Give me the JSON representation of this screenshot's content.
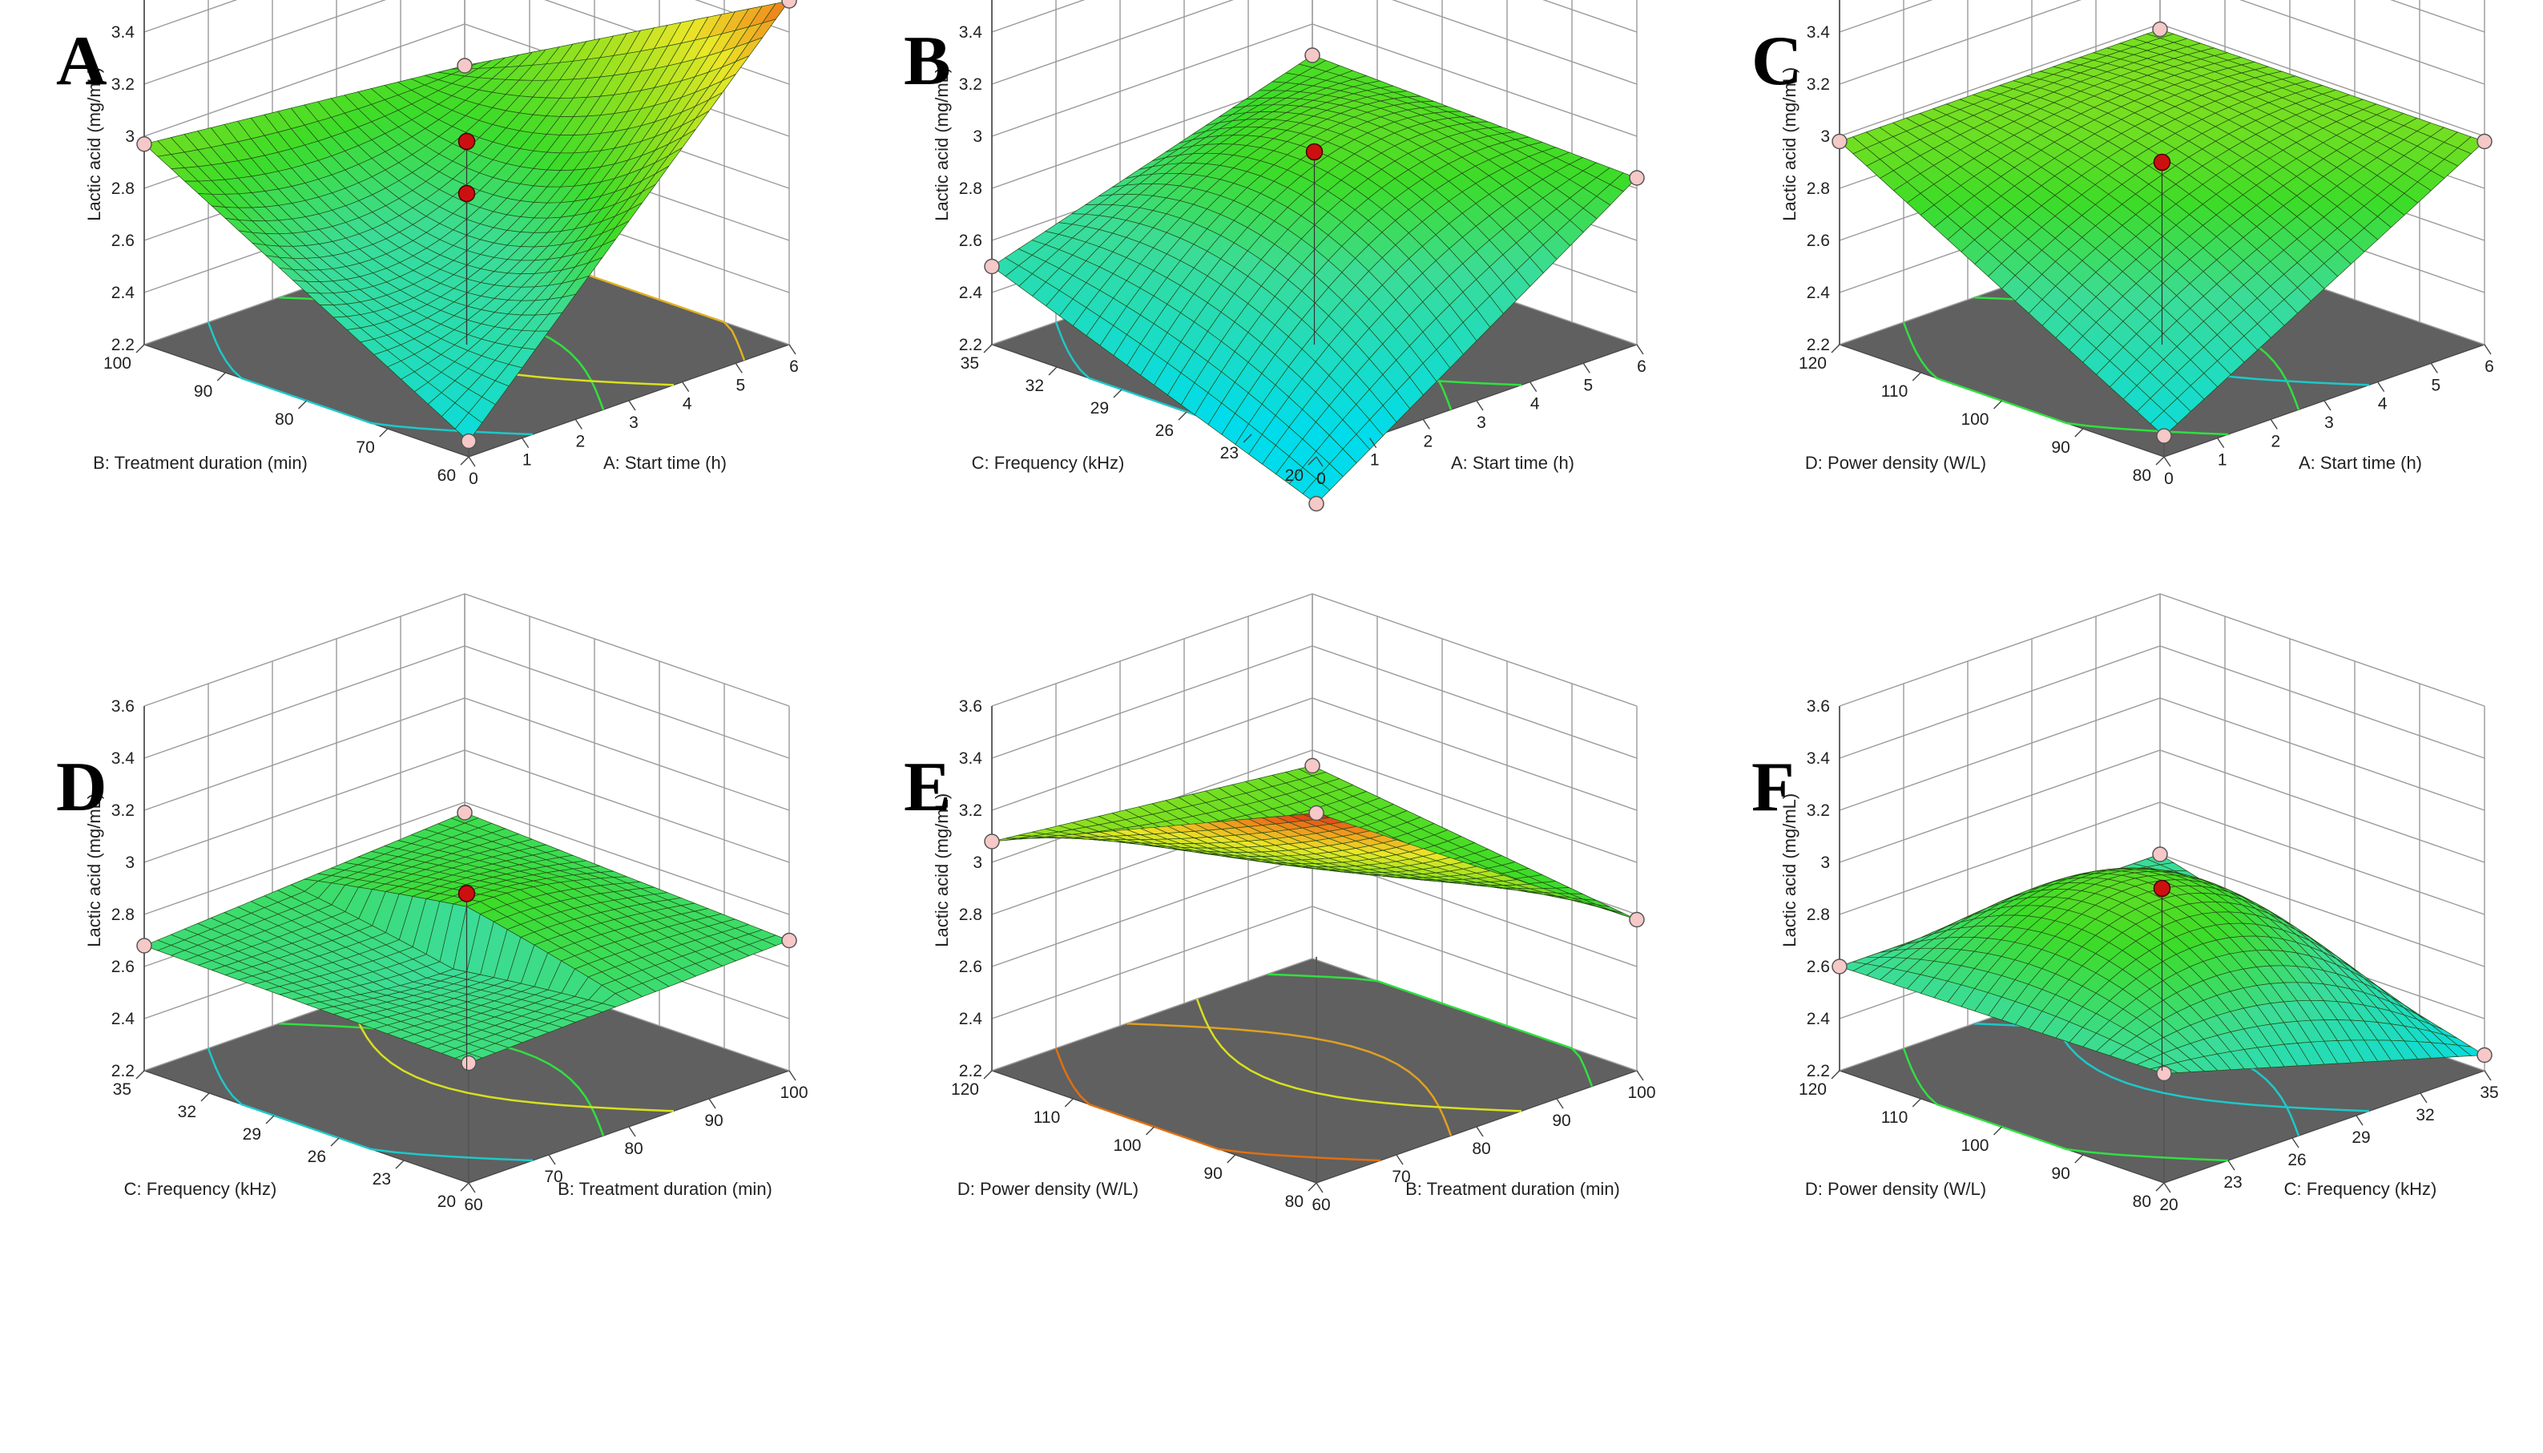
{
  "figure": {
    "z_axis_label": "Lactic acid (mg/mL)",
    "z_ticks": [
      "2.2",
      "2.4",
      "2.6",
      "2.8",
      "3",
      "3.2",
      "3.4",
      "3.6"
    ],
    "zlim": [
      2.2,
      3.6
    ]
  },
  "chart_data": [
    {
      "type": "surface3d",
      "letter": "A",
      "x_label": "A: Start time (h)",
      "x_ticks": [
        "0",
        "1",
        "2",
        "3",
        "4",
        "5",
        "6"
      ],
      "xlim": [
        0,
        6
      ],
      "y_label": "B: Treatment duration (min)",
      "y_ticks": [
        "60",
        "70",
        "80",
        "90",
        "100"
      ],
      "ylim": [
        60,
        100
      ],
      "z_label": "Lactic acid (mg/mL)",
      "zlim": [
        2.2,
        3.6
      ],
      "corners": {
        "x0y0": 2.26,
        "x1y0": 3.52,
        "x0y1": 2.97,
        "x1y1": 2.84
      },
      "center": 2.62,
      "curvature_x": 0.15,
      "curvature_y": -0.05,
      "design_points": [
        {
          "x": 3,
          "y": 80,
          "z": 2.98
        },
        {
          "x": 3,
          "y": 80,
          "z": 2.78
        }
      ],
      "contour_colors": [
        "#1ec8c8",
        "#30e040",
        "#d8e020",
        "#e0b020"
      ]
    },
    {
      "type": "surface3d",
      "letter": "B",
      "x_label": "A: Start time (h)",
      "x_ticks": [
        "0",
        "1",
        "2",
        "3",
        "4",
        "5",
        "6"
      ],
      "xlim": [
        0,
        6
      ],
      "y_label": "C: Frequency (kHz)",
      "y_ticks": [
        "20",
        "23",
        "26",
        "29",
        "32",
        "35"
      ],
      "ylim": [
        20,
        35
      ],
      "z_label": "Lactic acid (mg/mL)",
      "zlim": [
        2.2,
        3.6
      ],
      "corners": {
        "x0y0": 2.02,
        "x1y0": 2.84,
        "x0y1": 2.5,
        "x1y1": 2.88
      },
      "center": 2.82,
      "curvature_x": 0.0,
      "curvature_y": 0.0,
      "design_points": [
        {
          "x": 3,
          "y": 27.5,
          "z": 2.94
        }
      ],
      "contour_colors": [
        "#1ec8c8",
        "#30e040",
        "#30e040"
      ]
    },
    {
      "type": "surface3d",
      "letter": "C",
      "x_label": "A: Start time (h)",
      "x_ticks": [
        "0",
        "1",
        "2",
        "3",
        "4",
        "5",
        "6"
      ],
      "xlim": [
        0,
        6
      ],
      "y_label": "D: Power density (W/L)",
      "y_ticks": [
        "80",
        "90",
        "100",
        "110",
        "120"
      ],
      "ylim": [
        80,
        120
      ],
      "z_label": "Lactic acid (mg/mL)",
      "zlim": [
        2.2,
        3.6
      ],
      "corners": {
        "x0y0": 2.28,
        "x1y0": 2.98,
        "x0y1": 2.98,
        "x1y1": 2.98
      },
      "center": 2.92,
      "curvature_x": 0.05,
      "curvature_y": 0.0,
      "design_points": [
        {
          "x": 3,
          "y": 100,
          "z": 2.9
        }
      ],
      "contour_colors": [
        "#30e040",
        "#30e040",
        "#1ec8c8"
      ]
    },
    {
      "type": "surface3d",
      "letter": "D",
      "x_label": "B: Treatment duration (min)",
      "x_ticks": [
        "60",
        "70",
        "80",
        "90",
        "100"
      ],
      "xlim": [
        60,
        100
      ],
      "y_label": "C: Frequency (kHz)",
      "y_ticks": [
        "20",
        "23",
        "26",
        "29",
        "32",
        "35"
      ],
      "ylim": [
        20,
        35
      ],
      "z_label": "Lactic acid (mg/mL)",
      "zlim": [
        2.2,
        3.6
      ],
      "corners": {
        "x0y0": 2.66,
        "x1y0": 2.7,
        "x0y1": 2.68,
        "x1y1": 2.76
      },
      "center": 2.72,
      "curvature_x": 0.0,
      "curvature_y": 0.0,
      "saddle": 0.22,
      "design_points": [
        {
          "x": 80,
          "y": 27.5,
          "z": 2.88
        }
      ],
      "contour_colors": [
        "#1ec8c8",
        "#30e040",
        "#d8e020"
      ]
    },
    {
      "type": "surface3d",
      "letter": "E",
      "x_label": "B: Treatment duration (min)",
      "x_ticks": [
        "60",
        "70",
        "80",
        "90",
        "100"
      ],
      "xlim": [
        60,
        100
      ],
      "y_label": "D: Power density (W/L)",
      "y_ticks": [
        "80",
        "90",
        "100",
        "110",
        "120"
      ],
      "ylim": [
        80,
        120
      ],
      "z_label": "Lactic acid (mg/mL)",
      "zlim": [
        2.2,
        3.6
      ],
      "corners": {
        "x0y0": 3.62,
        "x1y0": 2.78,
        "x0y1": 3.08,
        "x1y1": 2.94
      },
      "center": 2.98,
      "curvature_x": 0.0,
      "curvature_y": 0.0,
      "design_points": [],
      "contour_colors": [
        "#e07010",
        "#e0a020",
        "#d8e020",
        "#30e040"
      ]
    },
    {
      "type": "surface3d",
      "letter": "F",
      "x_label": "C: Frequency (kHz)",
      "x_ticks": [
        "20",
        "23",
        "26",
        "29",
        "32",
        "35"
      ],
      "xlim": [
        20,
        35
      ],
      "y_label": "D: Power density (W/L)",
      "y_ticks": [
        "80",
        "90",
        "100",
        "110",
        "120"
      ],
      "ylim": [
        80,
        120
      ],
      "z_label": "Lactic acid (mg/mL)",
      "zlim": [
        2.2,
        3.6
      ],
      "corners": {
        "x0y0": 2.62,
        "x1y0": 2.26,
        "x0y1": 2.6,
        "x1y1": 2.6
      },
      "center": 2.9,
      "curvature_x": 0.0,
      "curvature_y": 0.0,
      "design_points": [
        {
          "x": 27.5,
          "y": 100,
          "z": 2.9
        }
      ],
      "contour_colors": [
        "#30e040",
        "#1ec8c8",
        "#1ec8c8"
      ]
    }
  ]
}
